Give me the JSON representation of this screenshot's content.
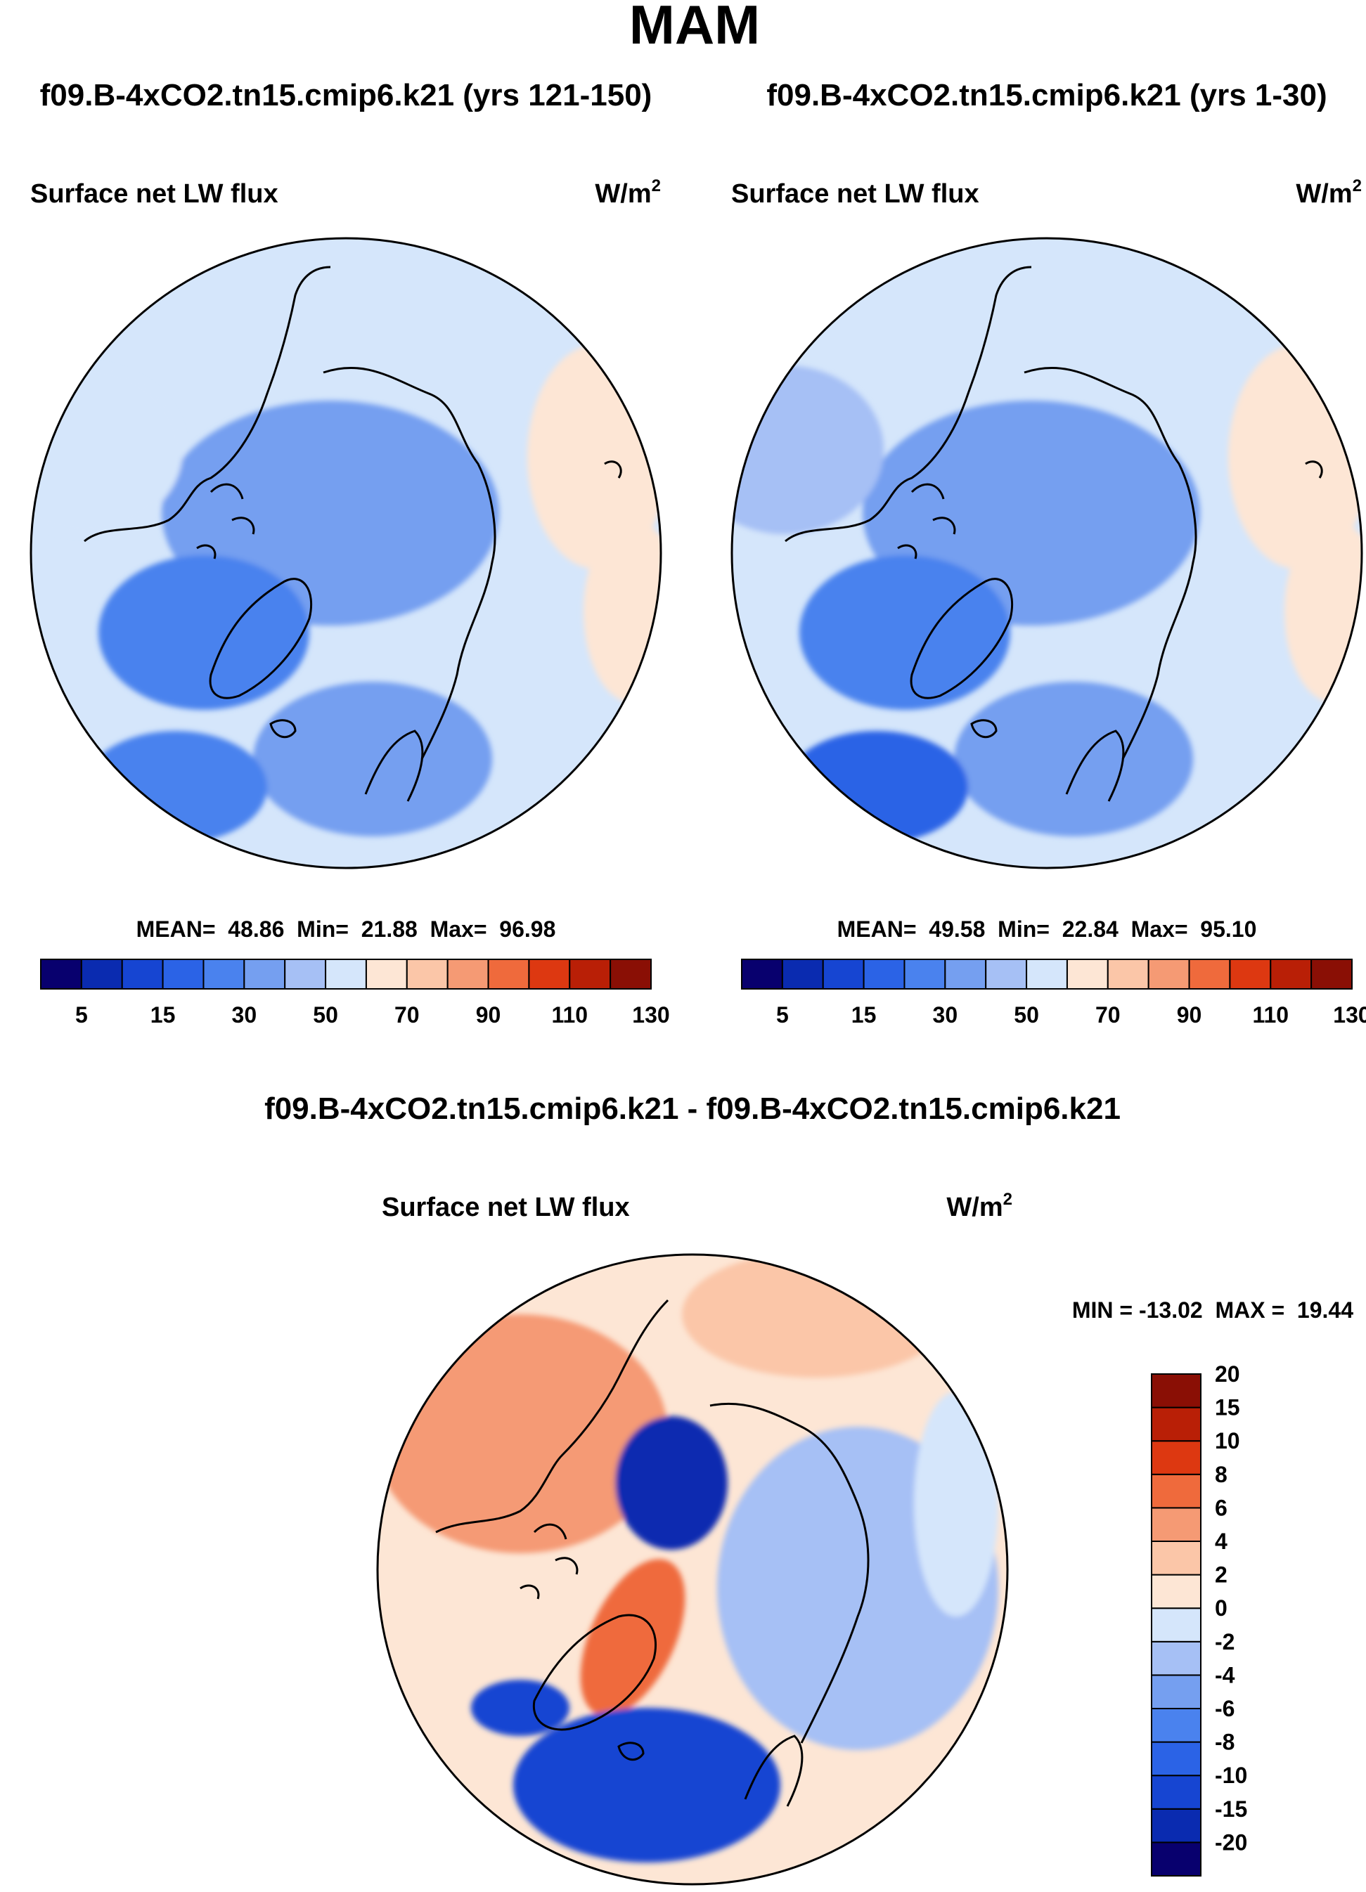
{
  "page_title": "MAM",
  "diff_title": "f09.B-4xCO2.tn15.cmip6.k21 - f09.B-4xCO2.tn15.cmip6.k21",
  "chart_data": [
    {
      "type": "heatmap",
      "projection": "north-polar-stereographic",
      "title": "f09.B-4xCO2.tn15.cmip6.k21 (yrs 121-150)",
      "variable": "Surface net LW flux",
      "units_base": "W/m",
      "units_exp": "2",
      "stats": {
        "mean_label": "MEAN=",
        "mean": "48.86",
        "min_label": "Min=",
        "min": "21.88",
        "max_label": "Max=",
        "max": "96.98"
      },
      "levels": [
        5,
        10,
        15,
        20,
        30,
        40,
        50,
        60,
        70,
        80,
        90,
        100,
        110,
        120,
        130
      ],
      "tick_labels": [
        "5",
        "15",
        "30",
        "50",
        "70",
        "90",
        "110",
        "130"
      ],
      "colors": [
        "#08006e",
        "#0a2bb0",
        "#1645d2",
        "#2b63e6",
        "#4a82ee",
        "#759ff0",
        "#a6c0f5",
        "#d5e6fb",
        "#fde6d5",
        "#fbc6a8",
        "#f59a74",
        "#ef6a3c",
        "#dd3811",
        "#b91f06",
        "#8a0f05"
      ],
      "regions": {
        "central_arctic": 48,
        "north_pacific": 60,
        "europe_asia": 47,
        "atlantic_ice_edge": 38,
        "southwest_atlantic": 30,
        "east_north": 72,
        "east_pacific_south": 78
      }
    },
    {
      "type": "heatmap",
      "projection": "north-polar-stereographic",
      "title": "f09.B-4xCO2.tn15.cmip6.k21 (yrs 1-30)",
      "variable": "Surface net LW flux",
      "units_base": "W/m",
      "units_exp": "2",
      "stats": {
        "mean_label": "MEAN=",
        "mean": "49.58",
        "min_label": "Min=",
        "min": "22.84",
        "max_label": "Max=",
        "max": "95.10"
      },
      "levels": [
        5,
        10,
        15,
        20,
        30,
        40,
        50,
        60,
        70,
        80,
        90,
        100,
        110,
        120,
        130
      ],
      "tick_labels": [
        "5",
        "15",
        "30",
        "50",
        "70",
        "90",
        "110",
        "130"
      ],
      "colors": [
        "#08006e",
        "#0a2bb0",
        "#1645d2",
        "#2b63e6",
        "#4a82ee",
        "#759ff0",
        "#a6c0f5",
        "#d5e6fb",
        "#fde6d5",
        "#fbc6a8",
        "#f59a74",
        "#ef6a3c",
        "#dd3811",
        "#b91f06",
        "#8a0f05"
      ],
      "regions": {
        "central_arctic": 46,
        "north_pacific": 58,
        "europe_asia": 45,
        "atlantic_ice_edge": 37,
        "southwest_atlantic": 28,
        "east_north": 70,
        "east_pacific_south": 76
      }
    },
    {
      "type": "heatmap",
      "projection": "north-polar-stereographic",
      "title": "f09.B-4xCO2.tn15.cmip6.k21 - f09.B-4xCO2.tn15.cmip6.k21",
      "variable": "Surface net LW flux",
      "units_base": "W/m",
      "units_exp": "2",
      "minmax_label": "MIN = -13.02  MAX =  19.44",
      "levels": [
        -20,
        -15,
        -10,
        -8,
        -6,
        -4,
        -2,
        0,
        2,
        4,
        6,
        8,
        10,
        15,
        20
      ],
      "tick_labels": [
        "-20",
        "-15",
        "-10",
        "-8",
        "-6",
        "-4",
        "-2",
        "0",
        "2",
        "4",
        "6",
        "8",
        "10",
        "15",
        "20"
      ],
      "colors": [
        "#08006e",
        "#0a2bb0",
        "#1645d2",
        "#2b63e6",
        "#4a82ee",
        "#759ff0",
        "#a6c0f5",
        "#d5e6fb",
        "#fde6d5",
        "#fbc6a8",
        "#f59a74",
        "#ef6a3c",
        "#dd3811",
        "#b91f06",
        "#8a0f05"
      ],
      "regions": {
        "north_america_pacific": 6,
        "bering_east_siberia": 4,
        "central_arctic_negative": -11,
        "greenland_sea_positive": 9,
        "north_atlantic_negative": -9,
        "labrador_negative": -10,
        "eurasia": -1,
        "east_ocean": 1
      }
    }
  ]
}
